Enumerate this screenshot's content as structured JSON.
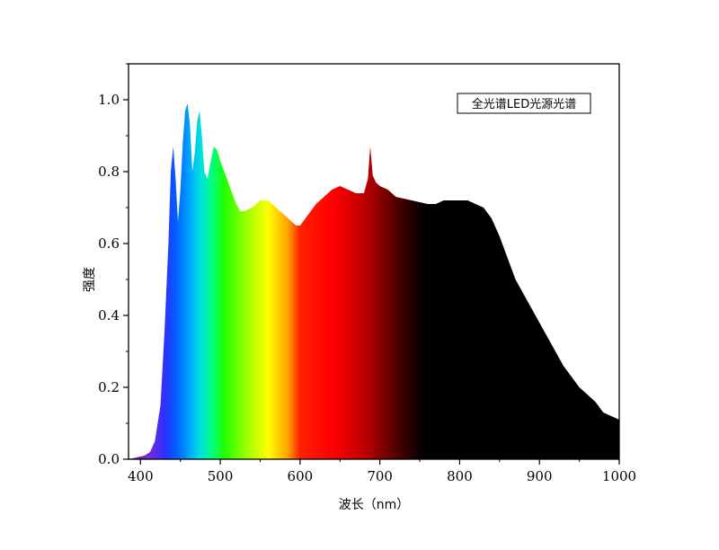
{
  "chart_data": {
    "type": "area",
    "title": "",
    "legend_label": "全光谱LED光源光谱",
    "legend_position": "top-right",
    "xlabel": "波长（nm）",
    "ylabel": "强度",
    "xlim": [
      385,
      1000
    ],
    "ylim": [
      0,
      1.1
    ],
    "x_ticks": [
      400,
      500,
      600,
      700,
      800,
      900,
      1000
    ],
    "x_tick_labels": [
      "400",
      "500",
      "600",
      "700",
      "800",
      "900",
      "1000"
    ],
    "y_ticks": [
      0,
      0.2,
      0.4,
      0.6,
      0.8,
      1.0
    ],
    "y_tick_labels": [
      "0.0",
      "0.2",
      "0.4",
      "0.6",
      "0.8",
      "1.0"
    ],
    "grid": false,
    "fill": "visible-spectrum gradient (violet→blue→cyan→green→yellow→red→dark red→black)",
    "series": [
      {
        "x": [
          385,
          405,
          412,
          418,
          425,
          430,
          435,
          438,
          441,
          444,
          447,
          450,
          453,
          456,
          459,
          462,
          465,
          468,
          471,
          474,
          477,
          480,
          484,
          488,
          492,
          496,
          500,
          505,
          510,
          515,
          520,
          525,
          530,
          540,
          550,
          560,
          570,
          580,
          590,
          595,
          600,
          610,
          620,
          630,
          640,
          650,
          660,
          670,
          680,
          685,
          688,
          691,
          695,
          700,
          710,
          720,
          740,
          760,
          770,
          780,
          790,
          800,
          810,
          820,
          830,
          840,
          850,
          860,
          870,
          880,
          890,
          900,
          910,
          920,
          930,
          940,
          950,
          960,
          970,
          980,
          990,
          1000
        ],
        "y": [
          0.0,
          0.01,
          0.02,
          0.05,
          0.15,
          0.35,
          0.6,
          0.8,
          0.87,
          0.78,
          0.66,
          0.75,
          0.88,
          0.97,
          0.99,
          0.93,
          0.8,
          0.85,
          0.94,
          0.97,
          0.9,
          0.8,
          0.78,
          0.83,
          0.87,
          0.86,
          0.83,
          0.8,
          0.77,
          0.74,
          0.71,
          0.69,
          0.69,
          0.7,
          0.72,
          0.72,
          0.7,
          0.68,
          0.66,
          0.65,
          0.65,
          0.68,
          0.71,
          0.73,
          0.75,
          0.76,
          0.75,
          0.74,
          0.74,
          0.78,
          0.87,
          0.79,
          0.77,
          0.76,
          0.75,
          0.73,
          0.72,
          0.71,
          0.71,
          0.72,
          0.72,
          0.72,
          0.72,
          0.71,
          0.7,
          0.67,
          0.62,
          0.56,
          0.5,
          0.46,
          0.42,
          0.38,
          0.34,
          0.3,
          0.26,
          0.23,
          0.2,
          0.18,
          0.16,
          0.13,
          0.12,
          0.11
        ]
      }
    ]
  }
}
